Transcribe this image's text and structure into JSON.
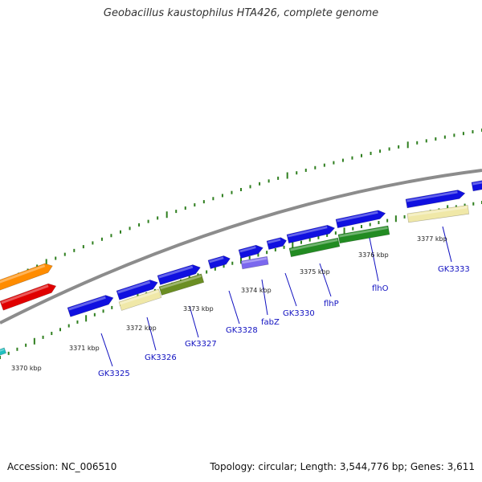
{
  "title": "Geobacillus kaustophilus HTA426, complete genome",
  "footer": {
    "accession": "Accession: NC_006510",
    "summary": "Topology: circular; Length: 3,544,776 bp; Genes: 3,611"
  },
  "colors": {
    "backbone": "#8c8c8c",
    "tick": "#2f7f1f",
    "gene_forward": "#1010e0",
    "label": "#1010c0",
    "kbp_label": "#222222"
  },
  "kbp_labels": [
    "3370 kbp",
    "3371 kbp",
    "3372 kbp",
    "3373 kbp",
    "3374 kbp",
    "3375 kbp",
    "3376 kbp",
    "3377 kbp"
  ],
  "gene_labels": [
    "GK3325",
    "GK3326",
    "GK3327",
    "GK3328",
    "fabZ",
    "GK3330",
    "flhP",
    "flhO",
    "GK3333"
  ],
  "features": [
    {
      "name": "feature-orange",
      "color": "#ff8c00"
    },
    {
      "name": "feature-red",
      "color": "#e00000"
    },
    {
      "name": "feature-cyan",
      "color": "#20c0c0"
    },
    {
      "name": "gene-gk3325",
      "color": "#1010e0"
    },
    {
      "name": "gene-gk3326",
      "color": "#1010e0"
    },
    {
      "name": "gene-gk3327",
      "color": "#1010e0"
    },
    {
      "name": "gene-gk3328",
      "color": "#1010e0"
    },
    {
      "name": "gene-fabz",
      "color": "#1010e0"
    },
    {
      "name": "gene-gk3330",
      "color": "#1010e0"
    },
    {
      "name": "gene-flhp",
      "color": "#1010e0"
    },
    {
      "name": "gene-flho",
      "color": "#1010e0"
    },
    {
      "name": "gene-gk3333",
      "color": "#1010e0"
    },
    {
      "name": "gene-edge",
      "color": "#1010e0"
    },
    {
      "name": "cds-gk3326",
      "color": "#f0e8a8"
    },
    {
      "name": "cds-gk3327",
      "color": "#6b8e23"
    },
    {
      "name": "cds-fabz",
      "color": "#7b68ee"
    },
    {
      "name": "cds-gk3330",
      "color": "#228b22"
    },
    {
      "name": "cds-flhp",
      "color": "#228b22"
    },
    {
      "name": "cds-gk3333",
      "color": "#f0e8a8"
    }
  ]
}
